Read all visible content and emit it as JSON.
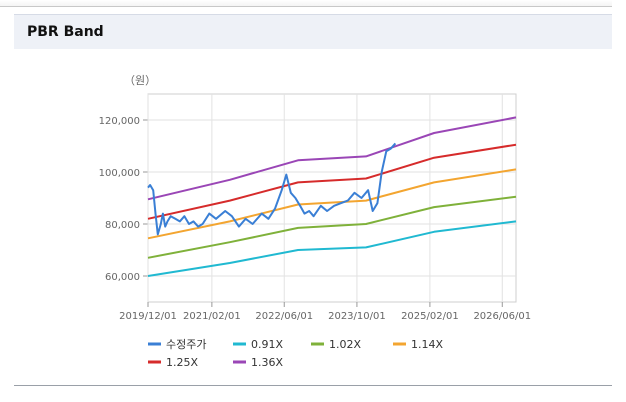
{
  "section": {
    "title": "PBR Band"
  },
  "chart_data": {
    "type": "line",
    "unit_label": "（원）",
    "ylim": [
      50000,
      130000
    ],
    "yticks": [
      60000,
      80000,
      100000,
      120000
    ],
    "ytick_labels": [
      "60,000",
      "80,000",
      "100,000",
      "120,000"
    ],
    "xlim": [
      "2019-12-01",
      "2026-09-01"
    ],
    "xticks": [
      "2019-12-01",
      "2021-02-01",
      "2022-06-01",
      "2023-10-01",
      "2025-02-01",
      "2026-06-01"
    ],
    "xtick_labels": [
      "2019/12/01",
      "2021/02/01",
      "2022/06/01",
      "2023/10/01",
      "2025/02/01",
      "2026/06/01"
    ],
    "grid": true,
    "legend_position": "bottom-left",
    "series": [
      {
        "name": "수정주가",
        "color": "#3a7fd5",
        "width": 2,
        "points": [
          [
            "2019-12-01",
            94000
          ],
          [
            "2019-12-15",
            95000
          ],
          [
            "2020-01-05",
            93000
          ],
          [
            "2020-01-20",
            84000
          ],
          [
            "2020-02-05",
            76000
          ],
          [
            "2020-02-25",
            80000
          ],
          [
            "2020-03-10",
            84000
          ],
          [
            "2020-03-25",
            79000
          ],
          [
            "2020-04-10",
            81000
          ],
          [
            "2020-05-01",
            83000
          ],
          [
            "2020-06-01",
            82000
          ],
          [
            "2020-07-01",
            81000
          ],
          [
            "2020-08-01",
            83000
          ],
          [
            "2020-09-01",
            80000
          ],
          [
            "2020-10-01",
            81000
          ],
          [
            "2020-11-01",
            79000
          ],
          [
            "2020-12-01",
            80000
          ],
          [
            "2021-01-15",
            84000
          ],
          [
            "2021-03-01",
            82000
          ],
          [
            "2021-05-01",
            85000
          ],
          [
            "2021-06-15",
            83000
          ],
          [
            "2021-08-01",
            79000
          ],
          [
            "2021-09-15",
            82000
          ],
          [
            "2021-11-01",
            80000
          ],
          [
            "2022-01-01",
            84000
          ],
          [
            "2022-02-15",
            82000
          ],
          [
            "2022-04-01",
            86000
          ],
          [
            "2022-05-15",
            93000
          ],
          [
            "2022-06-15",
            99000
          ],
          [
            "2022-07-15",
            92000
          ],
          [
            "2022-08-15",
            90000
          ],
          [
            "2022-09-15",
            87000
          ],
          [
            "2022-10-15",
            84000
          ],
          [
            "2022-11-15",
            85000
          ],
          [
            "2022-12-15",
            83000
          ],
          [
            "2023-02-01",
            87000
          ],
          [
            "2023-03-15",
            85000
          ],
          [
            "2023-05-01",
            87000
          ],
          [
            "2023-06-15",
            88000
          ],
          [
            "2023-08-01",
            89000
          ],
          [
            "2023-09-15",
            92000
          ],
          [
            "2023-11-01",
            90000
          ],
          [
            "2023-12-15",
            93000
          ],
          [
            "2024-01-15",
            85000
          ],
          [
            "2024-02-15",
            88000
          ],
          [
            "2024-03-15",
            100000
          ],
          [
            "2024-04-15",
            108000
          ],
          [
            "2024-05-15",
            109000
          ],
          [
            "2024-06-15",
            111000
          ]
        ]
      },
      {
        "name": "0.91X",
        "color": "#20b9d1",
        "width": 2,
        "points": [
          [
            "2019-12-01",
            60000
          ],
          [
            "2021-06-01",
            65000
          ],
          [
            "2022-09-01",
            70000
          ],
          [
            "2023-12-01",
            71000
          ],
          [
            "2025-03-01",
            77000
          ],
          [
            "2026-09-01",
            81000
          ]
        ]
      },
      {
        "name": "1.02X",
        "color": "#7fb13a",
        "width": 2,
        "points": [
          [
            "2019-12-01",
            67000
          ],
          [
            "2021-06-01",
            73000
          ],
          [
            "2022-09-01",
            78500
          ],
          [
            "2023-12-01",
            80000
          ],
          [
            "2025-03-01",
            86500
          ],
          [
            "2026-09-01",
            90500
          ]
        ]
      },
      {
        "name": "1.14X",
        "color": "#f3a530",
        "width": 2,
        "points": [
          [
            "2019-12-01",
            74500
          ],
          [
            "2021-06-01",
            81000
          ],
          [
            "2022-09-01",
            87500
          ],
          [
            "2023-12-01",
            89000
          ],
          [
            "2025-03-01",
            96000
          ],
          [
            "2026-09-01",
            101000
          ]
        ]
      },
      {
        "name": "1.25X",
        "color": "#d62b2b",
        "width": 2,
        "points": [
          [
            "2019-12-01",
            82000
          ],
          [
            "2021-06-01",
            89000
          ],
          [
            "2022-09-01",
            96000
          ],
          [
            "2023-12-01",
            97500
          ],
          [
            "2025-03-01",
            105500
          ],
          [
            "2026-09-01",
            110500
          ]
        ]
      },
      {
        "name": "1.36X",
        "color": "#9a46b6",
        "width": 2,
        "points": [
          [
            "2019-12-01",
            89500
          ],
          [
            "2021-06-01",
            97000
          ],
          [
            "2022-09-01",
            104500
          ],
          [
            "2023-12-01",
            106000
          ],
          [
            "2025-03-01",
            115000
          ],
          [
            "2026-09-01",
            121000
          ]
        ]
      }
    ]
  }
}
